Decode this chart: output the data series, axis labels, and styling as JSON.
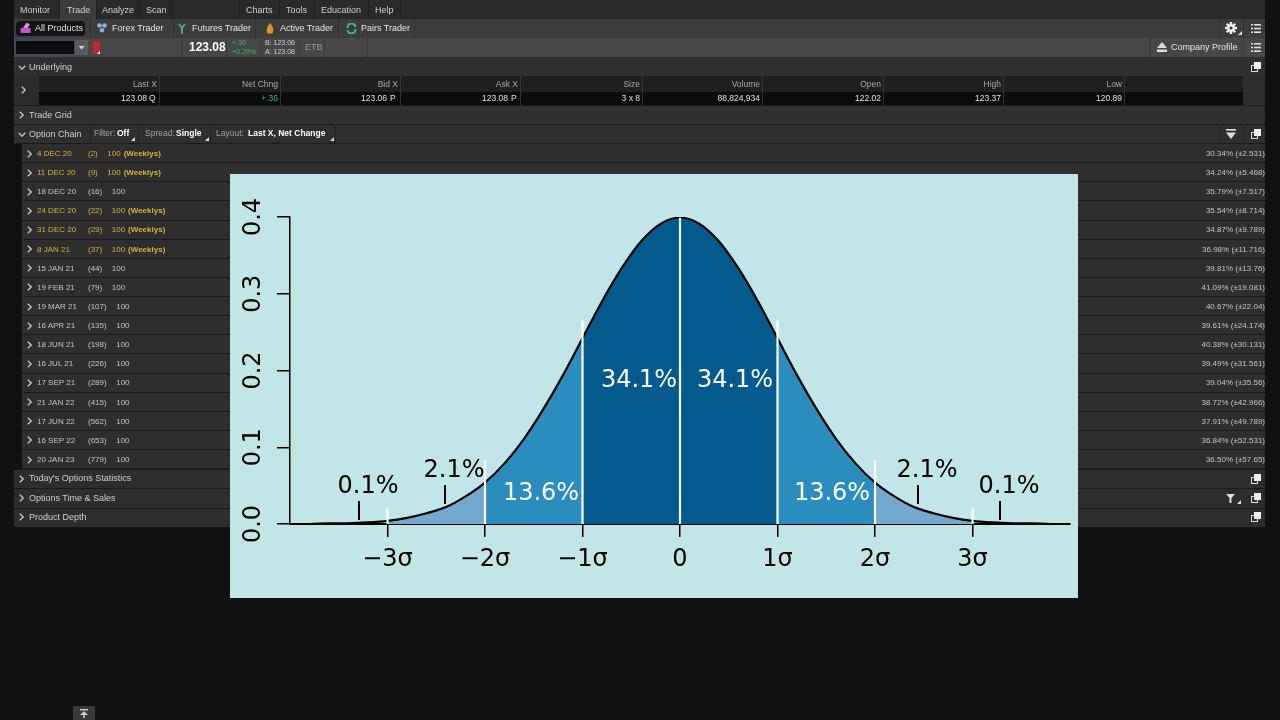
{
  "chart_data": {
    "type": "area",
    "xlim": [
      -4,
      4
    ],
    "ylim": [
      0,
      0.4
    ],
    "xticks": [
      {
        "value": -3,
        "label": "−3σ"
      },
      {
        "value": -2,
        "label": "−2σ"
      },
      {
        "value": -1,
        "label": "−1σ"
      },
      0,
      {
        "value": 1,
        "label": "1σ"
      },
      {
        "value": 2,
        "label": "2σ"
      },
      {
        "value": 3,
        "label": "3σ"
      }
    ],
    "yticks": [
      {
        "value": 0,
        "label": "0.0"
      },
      0.1,
      0.2,
      0.3,
      0.4
    ],
    "series": [
      {
        "type": "area",
        "color": "#74a9cf",
        "x": [
          -3,
          -2.8,
          -2.6,
          -2.4,
          -2.2,
          -2
        ],
        "values": [
          0.004,
          0.008,
          0.014,
          0.022,
          0.036,
          0.054
        ]
      },
      {
        "type": "area",
        "color": "#2b8cbe",
        "x": [
          -2,
          -1.8,
          -1.6,
          -1.4,
          -1.2,
          -1
        ],
        "values": [
          0.054,
          0.079,
          0.111,
          0.15,
          0.194,
          0.242
        ]
      },
      {
        "type": "area",
        "color": "#045a8d",
        "x": [
          -1,
          -0.8,
          -0.6,
          -0.4,
          -0.2,
          0
        ],
        "values": [
          0.242,
          0.29,
          0.333,
          0.368,
          0.391,
          0.399
        ]
      },
      {
        "type": "area",
        "color": "#045a8d",
        "x": [
          0,
          0.2,
          0.4,
          0.6,
          0.8,
          1
        ],
        "values": [
          0.399,
          0.391,
          0.368,
          0.333,
          0.29,
          0.242
        ]
      },
      {
        "type": "area",
        "color": "#2b8cbe",
        "x": [
          1,
          1.2,
          1.4,
          1.6,
          1.8,
          2
        ],
        "values": [
          0.242,
          0.194,
          0.15,
          0.111,
          0.079,
          0.054
        ]
      },
      {
        "type": "area",
        "color": "#74a9cf",
        "x": [
          2,
          2.2,
          2.4,
          2.6,
          2.8,
          3
        ],
        "values": [
          0.054,
          0.036,
          0.022,
          0.014,
          0.008,
          0.004
        ]
      },
      {
        "type": "line",
        "color": "#000000",
        "x": [
          -4,
          -3.8,
          -3.6,
          -3.4,
          -3.2,
          -3,
          -2.8,
          -2.6,
          -2.4,
          -2.2,
          -2,
          -1.8,
          -1.6,
          -1.4,
          -1.2,
          -1,
          -0.8,
          -0.6,
          -0.4,
          -0.2,
          0,
          0.2,
          0.4,
          0.6,
          0.8,
          1,
          1.2,
          1.4,
          1.6,
          1.8,
          2,
          2.2,
          2.4,
          2.6,
          2.8,
          3,
          3.2,
          3.4,
          3.6,
          3.8,
          4
        ],
        "values": [
          0,
          0,
          0.001,
          0.001,
          0.002,
          0.004,
          0.008,
          0.014,
          0.022,
          0.036,
          0.054,
          0.079,
          0.111,
          0.15,
          0.194,
          0.242,
          0.29,
          0.333,
          0.368,
          0.391,
          0.399,
          0.391,
          0.368,
          0.333,
          0.29,
          0.242,
          0.194,
          0.15,
          0.111,
          0.079,
          0.054,
          0.036,
          0.022,
          0.014,
          0.008,
          0.004,
          0.002,
          0.001,
          0.001,
          0,
          0
        ]
      },
      {
        "type": "line",
        "color": "#ffffff",
        "x": [
          -3,
          -3
        ],
        "values": [
          0,
          0.02
        ]
      },
      {
        "type": "line",
        "color": "#ffffff",
        "x": [
          -2,
          -2
        ],
        "values": [
          0,
          0.083
        ]
      },
      {
        "type": "line",
        "color": "#ffffff",
        "x": [
          -1,
          -1
        ],
        "values": [
          0,
          0.265
        ]
      },
      {
        "type": "line",
        "color": "#ffffff",
        "x": [
          0,
          0
        ],
        "values": [
          0,
          0.399
        ]
      },
      {
        "type": "line",
        "color": "#ffffff",
        "x": [
          1,
          1
        ],
        "values": [
          0,
          0.265
        ]
      },
      {
        "type": "line",
        "color": "#ffffff",
        "x": [
          2,
          2
        ],
        "values": [
          0,
          0.083
        ]
      },
      {
        "type": "line",
        "color": "#ffffff",
        "x": [
          3,
          3
        ],
        "values": [
          0,
          0.02
        ]
      }
    ],
    "annotations": [
      "0.1%",
      "2.1%",
      "13.6%",
      "34.1%",
      "34.1%",
      "13.6%",
      "2.1%",
      "0.1%",
      "Monitor",
      "Trade",
      "Analyze",
      "Scan",
      "Charts",
      "Tools",
      "Education",
      "Help",
      "All Products",
      "Forex Trader",
      "Futures Trader",
      "Active Trader",
      "Pairs Trader",
      "123.08",
      "+.36",
      "+0.29%",
      "B: 123.06",
      "A: 123.08",
      "ETB",
      "Company Profile",
      "Underlying",
      "Last X",
      "Net Chng",
      "Bid X",
      "Ask X",
      "Size",
      "Volume",
      "Open",
      "High",
      "Low",
      "123.08",
      "Q",
      "+.36",
      "123.06",
      "P",
      "123.08",
      "P",
      "3 x 8",
      "88,824,934",
      "122.02",
      "123.37",
      "120.89",
      "Trade Grid",
      "Option Chain",
      "Filter:",
      "Off",
      "Spread:",
      "Single",
      "Layout:",
      "Last X, Net Change",
      "4 DEC 20",
      "(2)",
      "100",
      "(Weeklys)",
      "30.34% (±2.531)",
      "11 DEC 20",
      "(9)",
      "100",
      "(Weeklys)",
      "34.24% (±5.468)",
      "18 DEC 20",
      "(16)",
      "100",
      "35.79% (±7.517)",
      "24 DEC 20",
      "(22)",
      "100",
      "(Weeklys)",
      "35.54% (±8.714)",
      "31 DEC 20",
      "(29)",
      "100",
      "(Weeklys)",
      "34.87% (±9.789)",
      "8 JAN 21",
      "(37)",
      "100",
      "(Weeklys)",
      "36.98% (±11.716)",
      "15 JAN 21",
      "(44)",
      "100",
      "39.81% (±13.76)",
      "19 FEB 21",
      "(79)",
      "100",
      "41.09% (±19.081)",
      "19 MAR 21",
      "(107)",
      "100",
      "40.67% (±22.04)",
      "16 APR 21",
      "(135)",
      "100",
      "39.61% (±24.174)",
      "18 JUN 21",
      "(198)",
      "100",
      "40.38% (±30.131)",
      "16 JUL 21",
      "(226)",
      "100",
      "39.49% (±31.561)",
      "17 SEP 21",
      "(289)",
      "100",
      "39.04% (±35.56)",
      "21 JAN 22",
      "(415)",
      "100",
      "38.72% (±42.966)",
      "17 JUN 22",
      "(562)",
      "100",
      "37.91% (±49.789)",
      "16 SEP 22",
      "(653)",
      "100",
      "36.84% (±52.531)",
      "20 JAN 23",
      "(779)",
      "100",
      "36.50% (±57.65)",
      "Today's Options Statistics",
      "Options Time & Sales",
      "Product Depth"
    ]
  }
}
